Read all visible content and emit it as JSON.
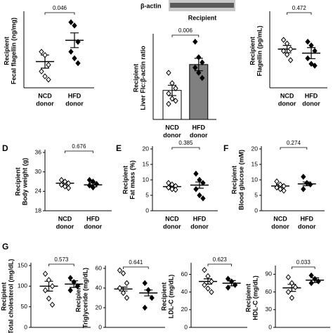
{
  "chart_data": [
    {
      "type": "dot",
      "ylabel": [
        "Recipient",
        "Fecal flagellin (ng/mg)"
      ],
      "categories": [
        [
          "NCD",
          "donor"
        ],
        [
          "HFD",
          "donor"
        ]
      ],
      "ylim": [
        0,
        45
      ],
      "values": [
        16,
        29
      ],
      "errors": [
        4,
        4.5
      ],
      "points": [
        [
          22,
          20,
          14,
          10,
          7,
          5
        ],
        [
          40,
          38,
          28,
          22,
          18,
          15
        ]
      ],
      "annotation": "0.046",
      "color": "#000000"
    },
    {
      "type": "bar",
      "labels": [
        "β-actin",
        "Recipient"
      ],
      "ylabel": [
        "Recipient",
        "Liver Flc:β-actin ratio"
      ],
      "categories": [
        [
          "NCD",
          "donor"
        ],
        [
          "HFD",
          "donor"
        ]
      ],
      "ylim": [
        0,
        0.8
      ],
      "values": [
        0.28,
        0.53
      ],
      "errors": [
        0.05,
        0.06
      ],
      "points": [
        [
          0.45,
          0.35,
          0.3,
          0.25,
          0.2,
          0.18,
          0.15
        ],
        [
          0.75,
          0.6,
          0.55,
          0.5,
          0.45,
          0.4
        ]
      ],
      "annotation": "0.006",
      "bar_colors": [
        "#ffffff",
        "#808080"
      ],
      "color": "#000000"
    },
    {
      "type": "dot",
      "ylabel": [
        "Recipient",
        "Flagellin (pg/mL)"
      ],
      "categories": [
        [
          "NCD",
          "donor"
        ],
        [
          "HFD",
          "donor"
        ]
      ],
      "ylim": [
        0,
        400
      ],
      "values": [
        210,
        188
      ],
      "errors": [
        20,
        30
      ],
      "points": [
        [
          260,
          240,
          210,
          200,
          180,
          150
        ],
        [
          250,
          230,
          200,
          160,
          130,
          120
        ]
      ],
      "annotation": "0.472",
      "color": "#000000"
    },
    {
      "type": "dot",
      "panel": "D",
      "ylabel": [
        "Recipient",
        "Body weight (g)"
      ],
      "categories": [
        [
          "NCD",
          "donor"
        ],
        [
          "HFD",
          "donor"
        ]
      ],
      "ylim": [
        18,
        36
      ],
      "yticks": [
        18,
        24,
        30,
        36
      ],
      "values": [
        26.5,
        26
      ],
      "errors": [
        0.5,
        0.6
      ],
      "points": [
        [
          27.5,
          27,
          26.5,
          26,
          25.5,
          25
        ],
        [
          27.5,
          27,
          26.3,
          25.8,
          25.2
        ]
      ],
      "annotation": "0.676",
      "color": "#000000"
    },
    {
      "type": "dot",
      "panel": "E",
      "ylabel": [
        "Recipient",
        "Fat mass (%)"
      ],
      "categories": [
        [
          "NCD",
          "donor"
        ],
        [
          "HFD",
          "donor"
        ]
      ],
      "ylim": [
        0,
        20
      ],
      "yticks": [
        0,
        5,
        10,
        15,
        20
      ],
      "values": [
        7.8,
        8.3
      ],
      "errors": [
        0.4,
        1
      ],
      "points": [
        [
          9,
          8.5,
          8,
          7.5,
          7,
          6.8
        ],
        [
          12,
          10,
          9,
          7,
          5,
          4
        ]
      ],
      "annotation": "0.385",
      "color": "#000000"
    },
    {
      "type": "dot",
      "panel": "F",
      "ylabel": [
        "Recipient",
        "Blood glucose (mM)"
      ],
      "categories": [
        [
          "NCD",
          "donor"
        ],
        [
          "HFD",
          "donor"
        ]
      ],
      "ylim": [
        0,
        20
      ],
      "yticks": [
        0,
        5,
        10,
        15,
        20
      ],
      "values": [
        8,
        8.7
      ],
      "errors": [
        0.5,
        0.6
      ],
      "points": [
        [
          9.5,
          8.5,
          8,
          7.5,
          7,
          6.5
        ],
        [
          11,
          9,
          8.5,
          7
        ]
      ],
      "annotation": "0.274",
      "color": "#000000"
    },
    {
      "type": "dot",
      "panel": "G",
      "ylabel": [
        "Recipient",
        "Total cholesterol (mg/dL)"
      ],
      "ylim": [
        0,
        150
      ],
      "yticks": [
        0,
        50,
        100,
        150
      ],
      "values": [
        100,
        105
      ],
      "errors": [
        12,
        8
      ],
      "points": [
        [
          130,
          115,
          100,
          90,
          70,
          55
        ],
        [
          120,
          110,
          100,
          90
        ]
      ],
      "annotation": "0.573",
      "color": "#000000"
    },
    {
      "type": "dot",
      "ylabel": [
        "Recipient",
        "Triglyceride (mg/dL)"
      ],
      "ylim": [
        0,
        60
      ],
      "yticks": [
        0,
        20,
        40,
        60
      ],
      "values": [
        39,
        35
      ],
      "errors": [
        2,
        3
      ],
      "points": [
        [
          58,
          55,
          45,
          40,
          35,
          30
        ],
        [
          45,
          38,
          30,
          20
        ]
      ],
      "annotation": "0.641",
      "color": "#000000"
    },
    {
      "type": "dot",
      "ylabel": [
        "Recipient",
        "LDL-C (mg/dL)"
      ],
      "ylim": [
        0,
        70
      ],
      "yticks": [
        0,
        20,
        40,
        60
      ],
      "values": [
        52,
        50
      ],
      "errors": [
        3,
        3
      ],
      "points": [
        [
          65,
          58,
          52,
          48,
          44,
          40
        ],
        [
          55,
          52,
          48,
          45
        ]
      ],
      "annotation": "0.623",
      "color": "#000000"
    },
    {
      "type": "dot",
      "ylabel": [
        "Recipient",
        "HDL-C (mg/dL)"
      ],
      "ylim": [
        0,
        100
      ],
      "yticks": [
        0,
        30,
        60,
        90
      ],
      "values": [
        67,
        80
      ],
      "errors": [
        6,
        4
      ],
      "points": [
        [
          85,
          75,
          68,
          60,
          50
        ],
        [
          88,
          82,
          78,
          75
        ]
      ],
      "annotation": "0.033",
      "color": "#000000"
    }
  ]
}
